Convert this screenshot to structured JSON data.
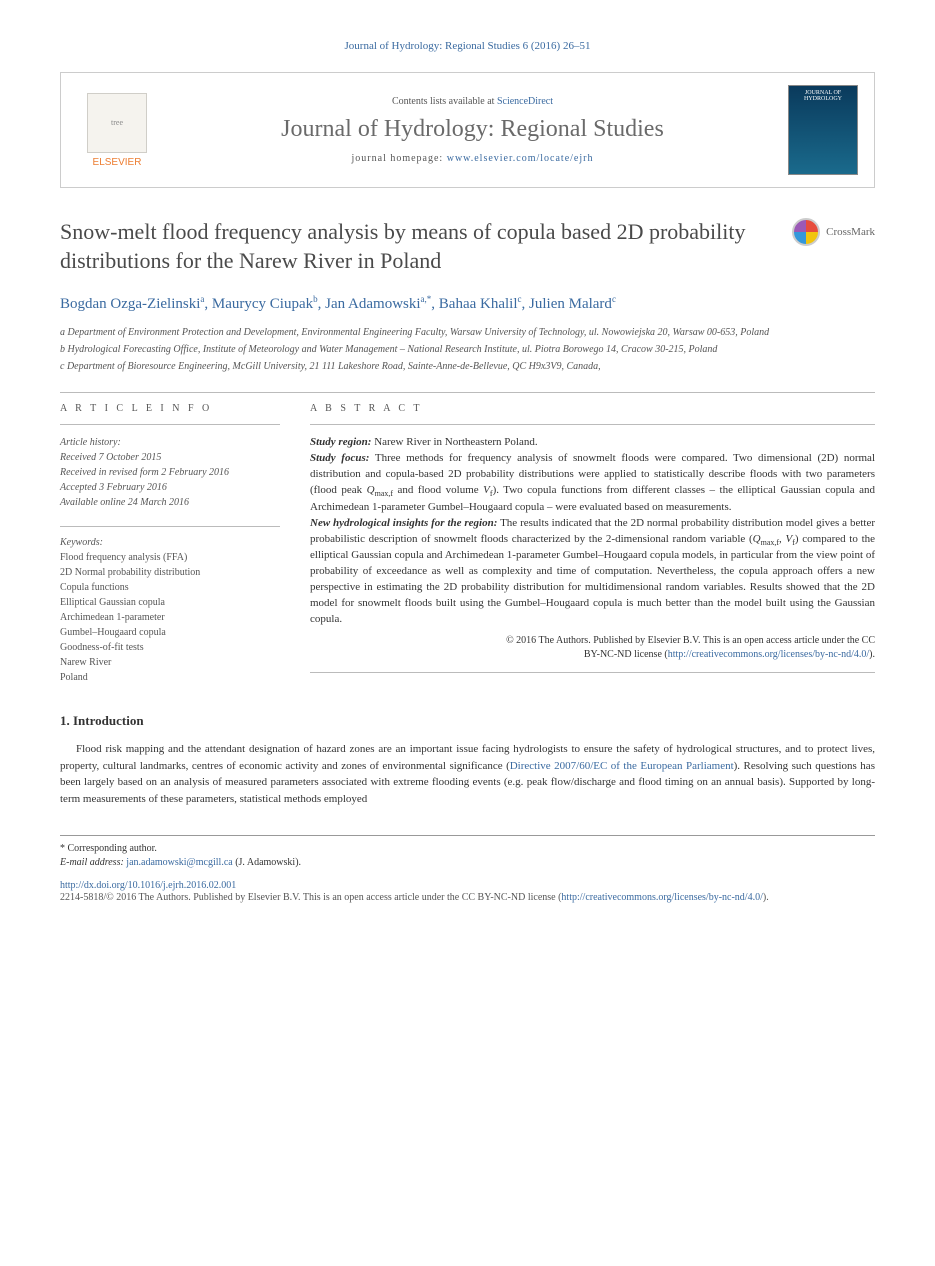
{
  "citation": "Journal of Hydrology: Regional Studies 6 (2016) 26–51",
  "banner": {
    "contents_prefix": "Contents lists available at ",
    "contents_link": "ScienceDirect",
    "journal_name": "Journal of Hydrology: Regional Studies",
    "homepage_prefix": "journal homepage: ",
    "homepage_url": "www.elsevier.com/locate/ejrh",
    "elsevier": "ELSEVIER",
    "cover_text": "JOURNAL OF HYDROLOGY"
  },
  "crossmark_label": "CrossMark",
  "article_title": "Snow-melt flood frequency analysis by means of copula based 2D probability distributions for the Narew River in Poland",
  "authors_html": "Bogdan Ozga-Zielinski<sup>a</sup>, Maurycy Ciupak<sup>b</sup>, Jan Adamowski<sup>a,*</sup>, Bahaa Khalil<sup>c</sup>, Julien Malard<sup>c</sup>",
  "affiliations": {
    "a": "a Department of Environment Protection and Development, Environmental Engineering Faculty, Warsaw University of Technology, ul. Nowowiejska 20, Warsaw 00-653, Poland",
    "b": "b Hydrological Forecasting Office, Institute of Meteorology and Water Management – National Research Institute, ul. Piotra Borowego 14, Cracow 30-215, Poland",
    "c": "c Department of Bioresource Engineering, McGill University, 21 111 Lakeshore Road, Sainte-Anne-de-Bellevue, QC H9x3V9, Canada,"
  },
  "article_info_heading": "A R T I C L E   I N F O",
  "abstract_heading": "A B S T R A C T",
  "history_label": "Article history:",
  "history": {
    "received": "Received 7 October 2015",
    "revised": "Received in revised form 2 February 2016",
    "accepted": "Accepted 3 February 2016",
    "online": "Available online 24 March 2016"
  },
  "keywords_label": "Keywords:",
  "keywords": [
    "Flood frequency analysis (FFA)",
    "2D Normal probability distribution",
    "Copula functions",
    "Elliptical Gaussian copula",
    "Archimedean 1-parameter",
    "Gumbel–Hougaard copula",
    "Goodness-of-fit tests",
    "Narew River",
    "Poland"
  ],
  "abstract": {
    "region_label": "Study region:",
    "region_text": " Narew River in Northeastern Poland.",
    "focus_label": "Study focus:",
    "focus_text": " Three methods for frequency analysis of snowmelt floods were compared. Two dimensional (2D) normal distribution and copula-based 2D probability distributions were applied to statistically describe floods with two parameters (flood peak Qmax,f and flood volume Vf). Two copula functions from different classes – the elliptical Gaussian copula and Archimedean 1-parameter Gumbel–Hougaard copula – were evaluated based on measurements.",
    "insights_label": "New hydrological insights for the region:",
    "insights_text": " The results indicated that the 2D normal probability distribution model gives a better probabilistic description of snowmelt floods characterized by the 2-dimensional random variable (Qmax,f, Vf) compared to the elliptical Gaussian copula and Archimedean 1-parameter Gumbel–Hougaard copula models, in particular from the view point of probability of exceedance as well as complexity and time of computation. Nevertheless, the copula approach offers a new perspective in estimating the 2D probability distribution for multidimensional random variables. Results showed that the 2D model for snowmelt floods built using the Gumbel–Hougaard copula is much better than the model built using the Gaussian copula."
  },
  "copyright": {
    "line1": "© 2016 The Authors. Published by Elsevier B.V. This is an open access article under the CC",
    "line2_prefix": "BY-NC-ND license (",
    "line2_link": "http://creativecommons.org/licenses/by-nc-nd/4.0/",
    "line2_suffix": ")."
  },
  "intro_heading": "1.  Introduction",
  "intro_text_pre": "Flood risk mapping and the attendant designation of hazard zones are an important issue facing hydrologists to ensure the safety of hydrological structures, and to protect lives, property, cultural landmarks, centres of economic activity and zones of environmental significance (",
  "intro_link": "Directive 2007/60/EC of the European Parliament",
  "intro_text_post": "). Resolving such questions has been largely based on an analysis of measured parameters associated with extreme flooding events (e.g. peak flow/discharge and flood timing on an annual basis). Supported by long-term measurements of these parameters, statistical methods employed",
  "corresponding_label": "* Corresponding author.",
  "email_label": "E-mail address:",
  "email": "jan.adamowski@mcgill.ca",
  "email_name": " (J. Adamowski).",
  "doi": "http://dx.doi.org/10.1016/j.ejrh.2016.02.001",
  "footer_copy_prefix": "2214-5818/© 2016 The Authors. Published by Elsevier B.V. This is an open access article under the CC BY-NC-ND license (",
  "footer_copy_link": "http://creativecommons.org/licenses/by-nc-nd/4.0/",
  "footer_copy_suffix": ")."
}
